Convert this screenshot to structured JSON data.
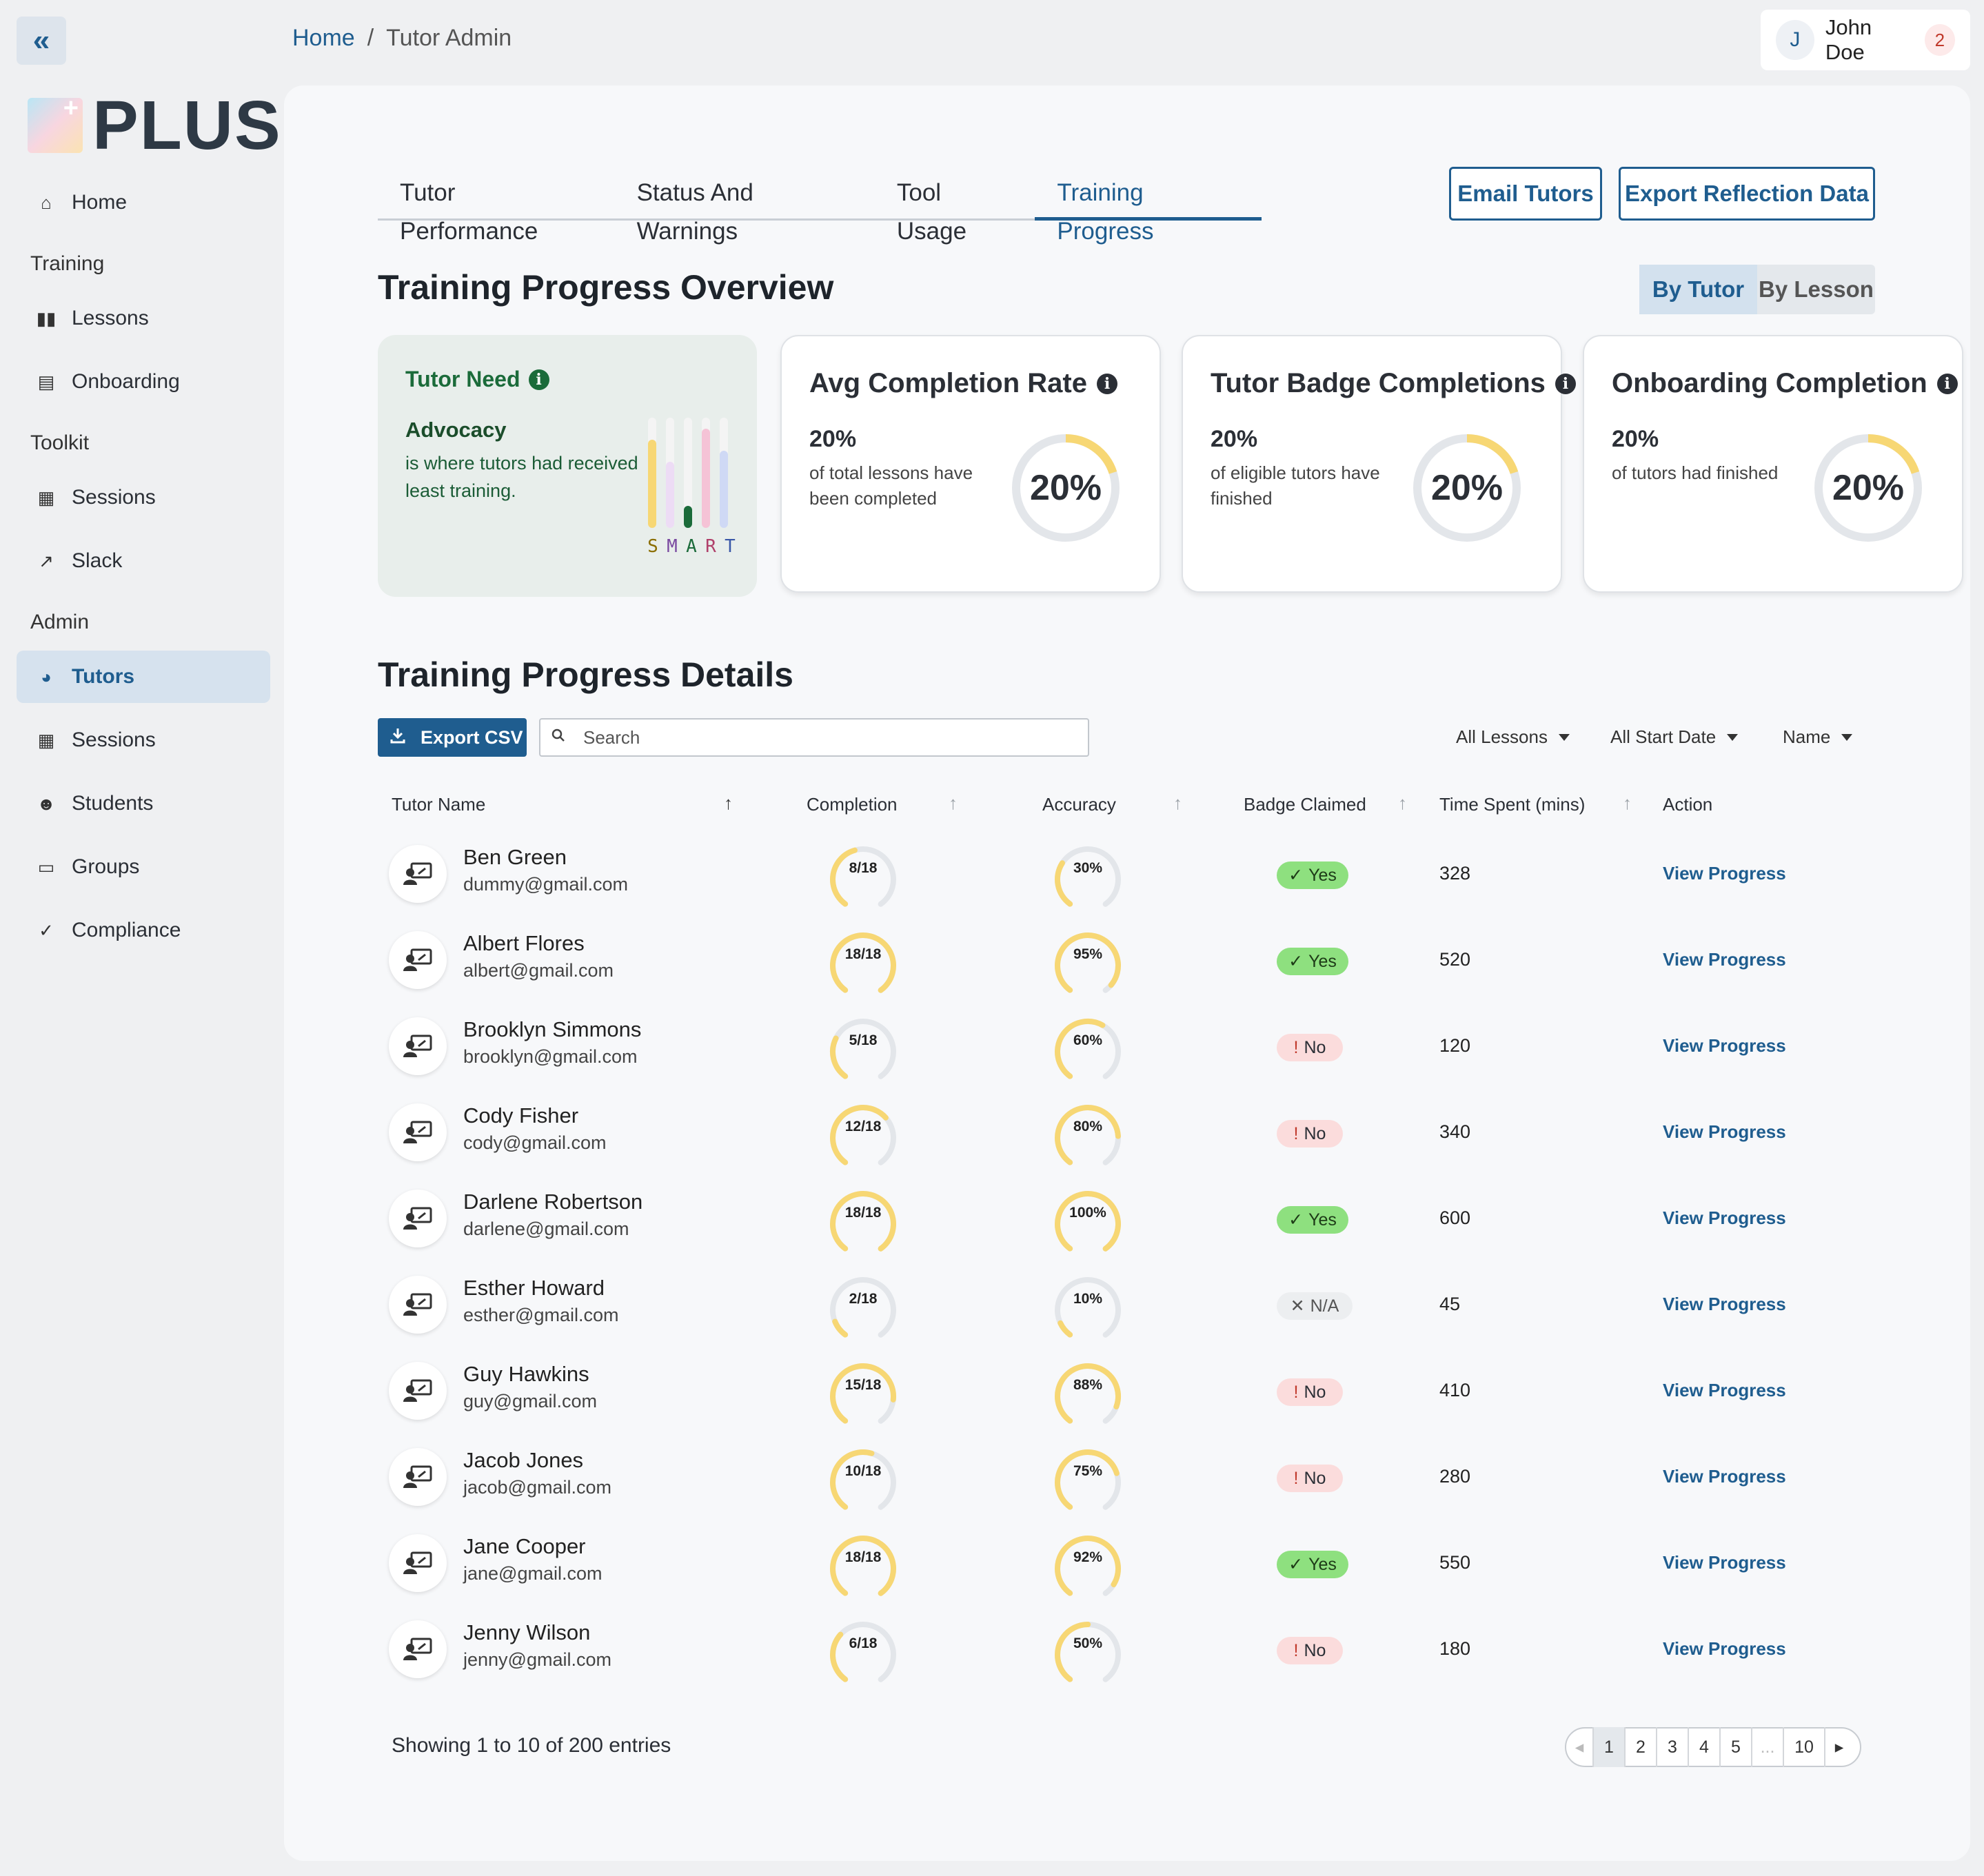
{
  "header": {
    "breadcrumb": [
      "Home",
      "Tutor Admin"
    ],
    "breadcrumb_sep": "/",
    "user": {
      "initial": "J",
      "name": "John Doe",
      "notifications": "2"
    }
  },
  "sidebar": {
    "logo_text": "PLUS",
    "sections": [
      {
        "label": "",
        "items": [
          {
            "label": "Home",
            "icon": "home-icon"
          }
        ]
      },
      {
        "label": "Training",
        "items": [
          {
            "label": "Lessons",
            "icon": "book-icon"
          },
          {
            "label": "Onboarding",
            "icon": "clipboard-icon"
          }
        ]
      },
      {
        "label": "Toolkit",
        "items": [
          {
            "label": "Sessions",
            "icon": "calendar-icon"
          },
          {
            "label": "Slack",
            "icon": "external-link-icon"
          }
        ]
      },
      {
        "label": "Admin",
        "items": [
          {
            "label": "Tutors",
            "icon": "pie-chart-icon",
            "active": true
          },
          {
            "label": "Sessions",
            "icon": "calendar-icon"
          },
          {
            "label": "Students",
            "icon": "users-icon"
          },
          {
            "label": "Groups",
            "icon": "keyboard-icon"
          },
          {
            "label": "Compliance",
            "icon": "clipboard-check-icon"
          }
        ]
      }
    ]
  },
  "tabs": [
    {
      "label": "Tutor Performance"
    },
    {
      "label": "Status And Warnings"
    },
    {
      "label": "Tool Usage"
    },
    {
      "label": "Training Progress",
      "active": true
    }
  ],
  "actions": {
    "email_tutors": "Email Tutors",
    "export_reflection": "Export Reflection Data"
  },
  "overview": {
    "title": "Training Progress Overview",
    "toggle": [
      "By Tutor",
      "By Lesson"
    ],
    "need": {
      "title": "Tutor Need",
      "area": "Advocacy",
      "desc": "is where tutors had received least training.",
      "smart": [
        {
          "letter": "S",
          "level": 0.8,
          "color": "#f7d774",
          "text_color": "#8a6d00"
        },
        {
          "letter": "M",
          "level": 0.6,
          "color": "#eddcf5",
          "text_color": "#7a4aa0"
        },
        {
          "letter": "A",
          "level": 0.2,
          "color": "#1b6b3a",
          "text_color": "#1b6b3a"
        },
        {
          "letter": "R",
          "level": 0.9,
          "color": "#f5c3d6",
          "text_color": "#b0406a"
        },
        {
          "letter": "T",
          "level": 0.7,
          "color": "#cfd9f5",
          "text_color": "#3a58a8"
        }
      ]
    },
    "cards": [
      {
        "title": "Avg Completion Rate",
        "pct": "20%",
        "desc": "of total lessons have been completed",
        "ring_label": "20%",
        "value": 0.2
      },
      {
        "title": "Tutor Badge Completions",
        "pct": "20%",
        "desc": "of eligible tutors have finished",
        "ring_label": "20%",
        "value": 0.2
      },
      {
        "title": "Onboarding Completion",
        "pct": "20%",
        "desc": "of tutors had finished",
        "ring_label": "20%",
        "value": 0.2
      }
    ]
  },
  "details": {
    "title": "Training Progress Details",
    "export_csv": "Export CSV",
    "search_placeholder": "Search",
    "filters": [
      "All Lessons",
      "All Start Date",
      "Name"
    ],
    "columns": [
      "Tutor Name",
      "Completion",
      "Accuracy",
      "Badge Claimed",
      "Time Spent (mins)",
      "Action"
    ],
    "rows": [
      {
        "name": "Ben Green",
        "email": "dummy@gmail.com",
        "completion": "8/18",
        "comp_val": 0.444,
        "accuracy": "30%",
        "acc_val": 0.3,
        "badge": "Yes",
        "badge_type": "yes",
        "time": "328",
        "action": "View Progress"
      },
      {
        "name": "Albert Flores",
        "email": "albert@gmail.com",
        "completion": "18/18",
        "comp_val": 1.0,
        "accuracy": "95%",
        "acc_val": 0.95,
        "badge": "Yes",
        "badge_type": "yes",
        "time": "520",
        "action": "View Progress"
      },
      {
        "name": "Brooklyn Simmons",
        "email": "brooklyn@gmail.com",
        "completion": "5/18",
        "comp_val": 0.278,
        "accuracy": "60%",
        "acc_val": 0.6,
        "badge": "No",
        "badge_type": "no",
        "time": "120",
        "action": "View Progress"
      },
      {
        "name": "Cody Fisher",
        "email": "cody@gmail.com",
        "completion": "12/18",
        "comp_val": 0.667,
        "accuracy": "80%",
        "acc_val": 0.8,
        "badge": "No",
        "badge_type": "no",
        "time": "340",
        "action": "View Progress"
      },
      {
        "name": "Darlene Robertson",
        "email": "darlene@gmail.com",
        "completion": "18/18",
        "comp_val": 1.0,
        "accuracy": "100%",
        "acc_val": 1.0,
        "badge": "Yes",
        "badge_type": "yes",
        "time": "600",
        "action": "View Progress"
      },
      {
        "name": "Esther Howard",
        "email": "esther@gmail.com",
        "completion": "2/18",
        "comp_val": 0.111,
        "accuracy": "10%",
        "acc_val": 0.1,
        "badge": "N/A",
        "badge_type": "na",
        "time": "45",
        "action": "View Progress"
      },
      {
        "name": "Guy Hawkins",
        "email": "guy@gmail.com",
        "completion": "15/18",
        "comp_val": 0.833,
        "accuracy": "88%",
        "acc_val": 0.88,
        "badge": "No",
        "badge_type": "no",
        "time": "410",
        "action": "View Progress"
      },
      {
        "name": "Jacob Jones",
        "email": "jacob@gmail.com",
        "completion": "10/18",
        "comp_val": 0.556,
        "accuracy": "75%",
        "acc_val": 0.75,
        "badge": "No",
        "badge_type": "no",
        "time": "280",
        "action": "View Progress"
      },
      {
        "name": "Jane Cooper",
        "email": "jane@gmail.com",
        "completion": "18/18",
        "comp_val": 1.0,
        "accuracy": "92%",
        "acc_val": 0.92,
        "badge": "Yes",
        "badge_type": "yes",
        "time": "550",
        "action": "View Progress"
      },
      {
        "name": "Jenny Wilson",
        "email": "jenny@gmail.com",
        "completion": "6/18",
        "comp_val": 0.333,
        "accuracy": "50%",
        "acc_val": 0.5,
        "badge": "No",
        "badge_type": "no",
        "time": "180",
        "action": "View Progress"
      }
    ],
    "showing": "Showing 1 to 10 of 200 entries",
    "pages": [
      "1",
      "2",
      "3",
      "4",
      "5",
      "...",
      "10"
    ]
  },
  "colors": {
    "accent": "#1f5d8f",
    "gauge_fill": "#f7d774",
    "gauge_track": "#e3e6ea",
    "need_green": "#1b6b3a"
  }
}
